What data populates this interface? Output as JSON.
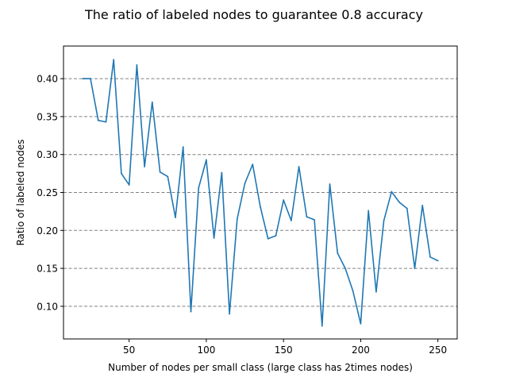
{
  "chart_data": {
    "type": "line",
    "title": "The ratio of labeled nodes to guarantee 0.8 accuracy",
    "xlabel": "Number of nodes per small class (large class has 2times nodes)",
    "ylabel": "Ratio of labeled nodes",
    "xlim": [
      7.5,
      262.5
    ],
    "ylim": [
      0.057,
      0.443
    ],
    "xticks": [
      50,
      100,
      150,
      200,
      250
    ],
    "yticks": [
      0.1,
      0.15,
      0.2,
      0.25,
      0.3,
      0.35,
      0.4
    ],
    "grid": "y-dashed",
    "line_color": "#1f77b4",
    "series": [
      {
        "x": [
          20,
          25,
          30,
          35,
          40,
          45,
          50,
          55,
          60,
          65,
          70,
          75,
          80,
          85,
          90,
          95,
          100,
          105,
          110,
          115,
          120,
          125,
          130,
          135,
          140,
          145,
          150,
          155,
          160,
          165,
          170,
          175,
          180,
          185,
          190,
          195,
          200,
          205,
          210,
          215,
          220,
          225,
          230,
          235,
          240,
          245,
          250
        ],
        "values": [
          0.4,
          0.4,
          0.345,
          0.343,
          0.425,
          0.275,
          0.26,
          0.418,
          0.284,
          0.369,
          0.277,
          0.271,
          0.217,
          0.31,
          0.093,
          0.256,
          0.293,
          0.19,
          0.276,
          0.09,
          0.215,
          0.262,
          0.287,
          0.231,
          0.189,
          0.193,
          0.24,
          0.213,
          0.284,
          0.218,
          0.214,
          0.074,
          0.261,
          0.17,
          0.15,
          0.12,
          0.077,
          0.226,
          0.119,
          0.213,
          0.251,
          0.237,
          0.229,
          0.15,
          0.233,
          0.165,
          0.16
        ]
      }
    ]
  }
}
